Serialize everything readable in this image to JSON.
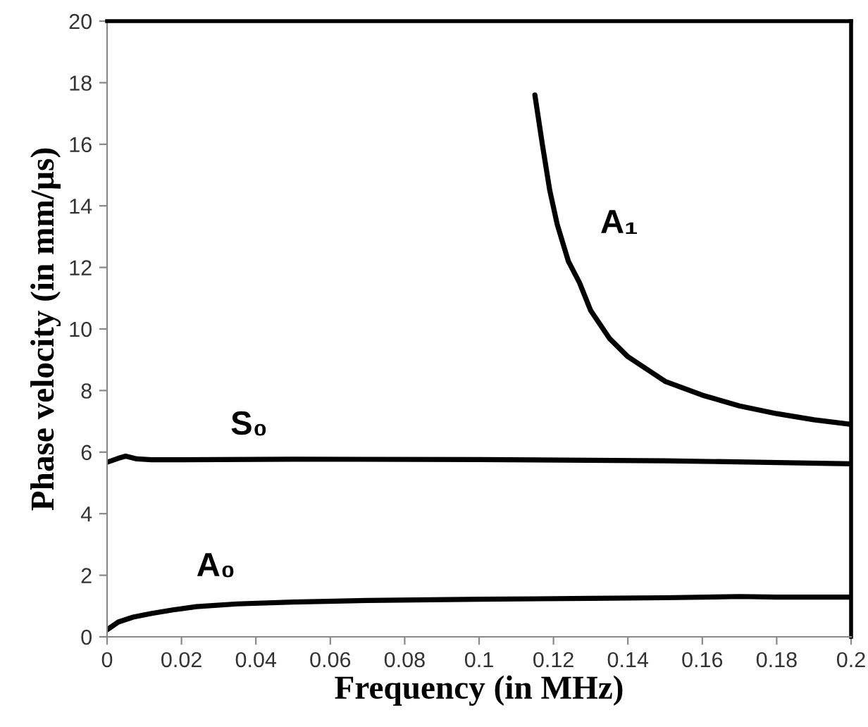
{
  "chart_data": {
    "type": "line",
    "xlabel": "Frequency (in MHz)",
    "ylabel": "Phase velocity (in mm/µs)",
    "xlim": [
      0,
      0.2
    ],
    "ylim": [
      0,
      20
    ],
    "xticks": [
      0,
      0.02,
      0.04,
      0.06,
      0.08,
      0.1,
      0.12,
      0.14,
      0.16,
      0.18,
      {
        "value": 0.2,
        "label": "0.2"
      }
    ],
    "yticks": [
      0,
      2,
      4,
      6,
      8,
      10,
      12,
      14,
      16,
      18,
      20
    ],
    "grid": false,
    "marker": "none",
    "line_style": "solid",
    "series": [
      {
        "name": "A₁",
        "color": "#000000",
        "x": [
          0.115,
          0.117,
          0.119,
          0.121,
          0.124,
          0.127,
          0.13,
          0.135,
          0.14,
          0.15,
          0.16,
          0.17,
          0.18,
          0.19,
          0.2
        ],
        "values": [
          17.6,
          16,
          14.5,
          13.4,
          12.2,
          11.5,
          10.6,
          9.7,
          9.1,
          8.3,
          7.85,
          7.5,
          7.25,
          7.05,
          6.9
        ]
      },
      {
        "name": "S₀",
        "color": "#000000",
        "x": [
          0,
          0.003,
          0.005,
          0.008,
          0.012,
          0.02,
          0.05,
          0.1,
          0.15,
          0.2
        ],
        "values": [
          5.67,
          5.8,
          5.87,
          5.78,
          5.75,
          5.75,
          5.77,
          5.76,
          5.72,
          5.62
        ]
      },
      {
        "name": "A₀",
        "color": "#000000",
        "x": [
          0,
          0.003,
          0.007,
          0.012,
          0.018,
          0.024,
          0.035,
          0.05,
          0.07,
          0.1,
          0.13,
          0.15,
          0.17,
          0.18,
          0.2
        ],
        "values": [
          0.23,
          0.48,
          0.64,
          0.76,
          0.88,
          0.98,
          1.07,
          1.13,
          1.18,
          1.22,
          1.25,
          1.27,
          1.31,
          1.29,
          1.29
        ]
      }
    ]
  }
}
